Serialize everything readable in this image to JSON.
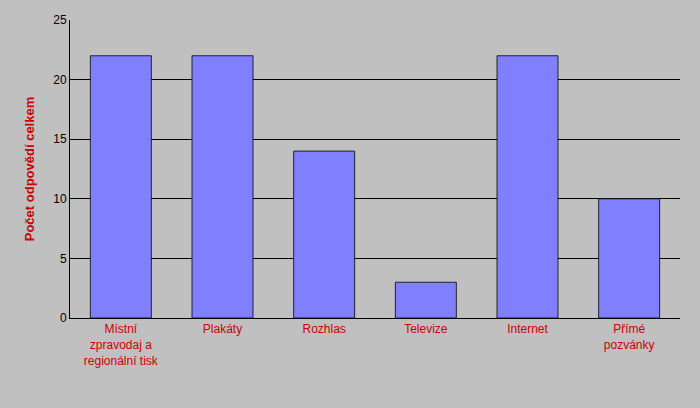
{
  "chart_data": {
    "type": "bar",
    "categories": [
      "Místní\nzpravodaj a\nregionální tisk",
      "Plakáty",
      "Rozhlas",
      "Televize",
      "Internet",
      "Přímé\npozvánky"
    ],
    "values": [
      22,
      22,
      14,
      3,
      22,
      10
    ],
    "color": "#8080ff",
    "ylabel": "Počet odpovědí celkem",
    "ylim": [
      0,
      25
    ],
    "yticks": [
      0,
      5,
      10,
      15,
      20,
      25
    ],
    "grid": true
  }
}
